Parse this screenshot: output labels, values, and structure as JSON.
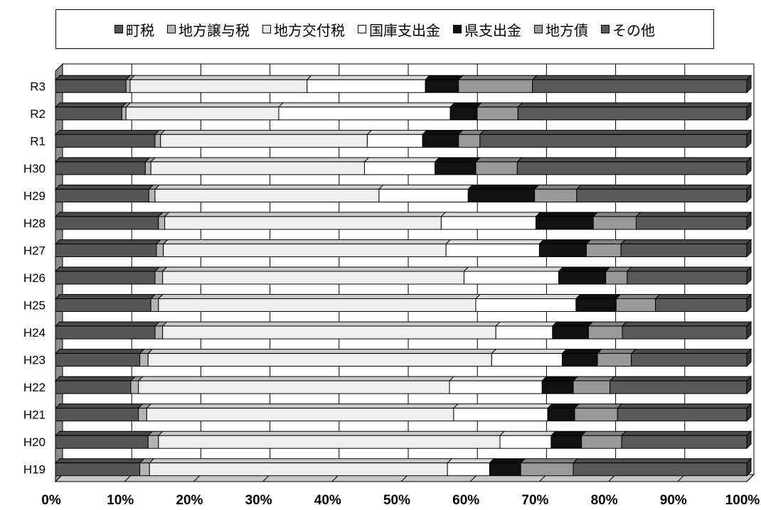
{
  "chart_data": {
    "type": "bar",
    "stacked": "percent",
    "orientation": "horizontal",
    "grid": true,
    "legend_position": "top",
    "xlim": [
      0,
      100
    ],
    "x_ticks": [
      "0%",
      "10%",
      "20%",
      "30%",
      "40%",
      "50%",
      "60%",
      "70%",
      "80%",
      "90%",
      "100%"
    ],
    "categories": [
      "R3",
      "R2",
      "R1",
      "H30",
      "H29",
      "H28",
      "H27",
      "H26",
      "H25",
      "H24",
      "H23",
      "H22",
      "H21",
      "H20",
      "H19"
    ],
    "series": [
      {
        "name": "町税",
        "color": "#555555",
        "values": [
          10.2,
          9.6,
          14.4,
          13.0,
          13.5,
          14.9,
          14.6,
          14.4,
          13.8,
          14.4,
          12.2,
          10.9,
          12.0,
          13.4,
          12.2
        ]
      },
      {
        "name": "地方譲与税",
        "color": "#b5b5b5",
        "values": [
          0.6,
          0.6,
          0.8,
          0.8,
          0.9,
          0.9,
          1.0,
          1.1,
          1.1,
          1.1,
          1.2,
          1.1,
          1.2,
          1.5,
          1.4
        ]
      },
      {
        "name": "地方交付税",
        "color": "#eeeeee",
        "values": [
          25.6,
          22.1,
          29.9,
          30.9,
          32.4,
          40.0,
          40.9,
          43.6,
          45.9,
          48.2,
          49.7,
          45.0,
          44.4,
          49.4,
          43.1
        ]
      },
      {
        "name": "国庫支出金",
        "color": "#ffffff",
        "values": [
          17.1,
          24.8,
          8.0,
          10.2,
          12.9,
          13.7,
          13.5,
          13.7,
          14.5,
          8.2,
          10.2,
          13.4,
          13.6,
          7.4,
          6.1
        ]
      },
      {
        "name": "県支出金",
        "color": "#111111",
        "values": [
          4.8,
          3.9,
          5.2,
          5.9,
          9.6,
          8.3,
          6.8,
          6.8,
          5.8,
          5.2,
          5.1,
          4.5,
          3.9,
          4.4,
          4.5
        ]
      },
      {
        "name": "地方債",
        "color": "#999999",
        "values": [
          10.7,
          5.9,
          3.1,
          6.0,
          6.1,
          6.2,
          5.0,
          3.1,
          5.7,
          4.9,
          4.9,
          5.3,
          6.2,
          5.8,
          7.6
        ]
      },
      {
        "name": "その他",
        "color": "#595959",
        "values": [
          31.0,
          33.1,
          38.6,
          33.2,
          24.6,
          16.0,
          18.2,
          17.3,
          13.2,
          18.0,
          16.7,
          19.8,
          18.7,
          18.1,
          25.1
        ]
      }
    ]
  }
}
